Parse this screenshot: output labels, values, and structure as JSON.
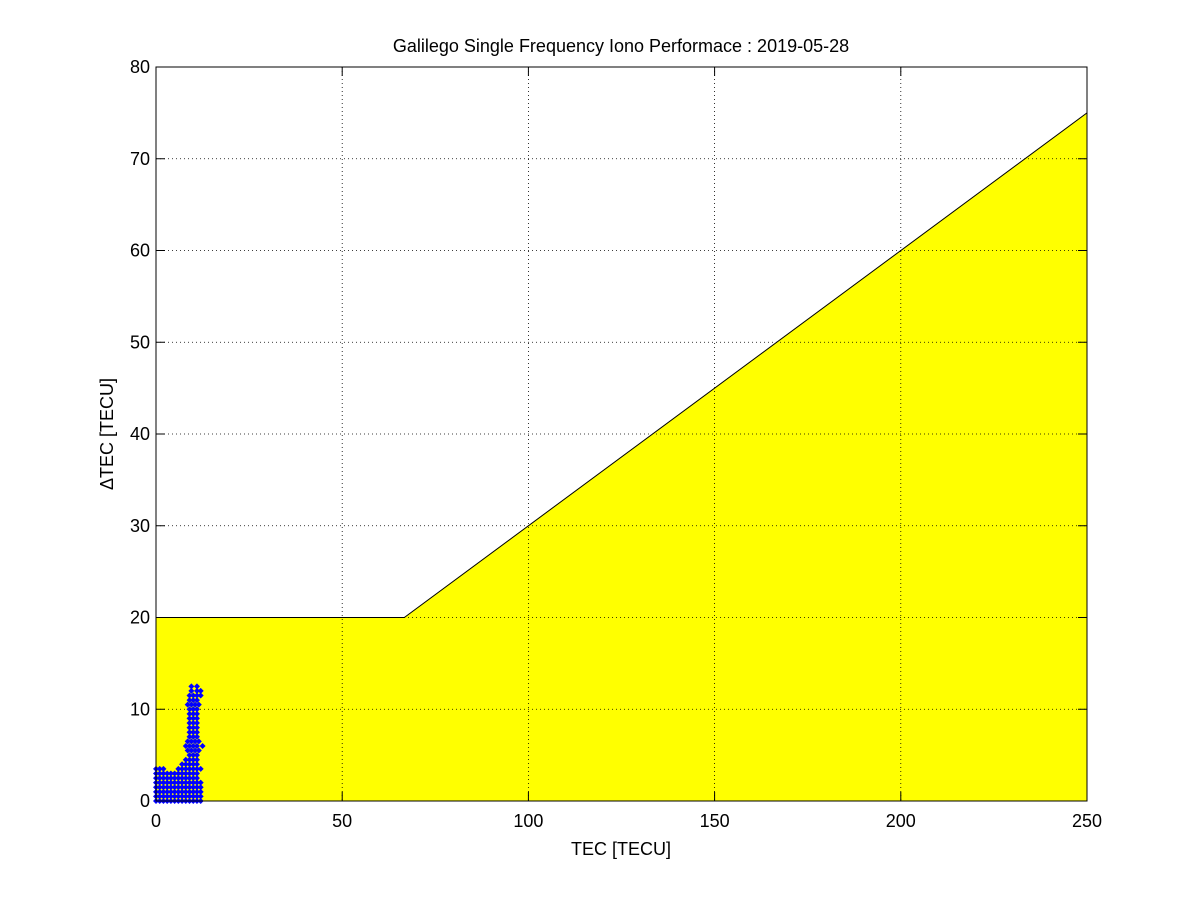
{
  "chart_data": {
    "type": "scatter",
    "title": "Galilego Single Frequency Iono Performace : 2019-05-28",
    "xlabel": "TEC [TECU]",
    "ylabel": "ΔTEC [TECU]",
    "xlim": [
      0,
      250
    ],
    "ylim": [
      0,
      80
    ],
    "xticks": [
      0,
      50,
      100,
      150,
      200,
      250
    ],
    "yticks": [
      0,
      10,
      20,
      30,
      40,
      50,
      60,
      70,
      80
    ],
    "grid": true,
    "legend": "none",
    "colors": {
      "region": "#ffff00",
      "points": "#0000ff",
      "region_edge": "#000000"
    },
    "region": {
      "description_points": [
        [
          0,
          0
        ],
        [
          0,
          20
        ],
        [
          66.67,
          20
        ],
        [
          250,
          75
        ],
        [
          250,
          0
        ]
      ]
    },
    "points_by_row": [
      {
        "y": 0,
        "x": [
          0,
          1,
          2,
          3,
          4,
          5,
          6,
          7,
          8,
          9,
          10,
          11,
          12
        ]
      },
      {
        "y": 0.5,
        "x": [
          0,
          1,
          2,
          3,
          4,
          5,
          6,
          7,
          8,
          9,
          10,
          11,
          12
        ]
      },
      {
        "y": 1,
        "x": [
          0,
          1,
          2,
          3,
          4,
          5,
          6,
          7,
          8,
          9,
          10,
          11,
          12
        ]
      },
      {
        "y": 1.5,
        "x": [
          0,
          1,
          2,
          3,
          4,
          5,
          6,
          7,
          8,
          9,
          10,
          11,
          12
        ]
      },
      {
        "y": 2,
        "x": [
          0,
          1,
          2,
          3,
          4,
          5,
          6,
          7,
          8,
          9,
          10,
          11,
          12
        ]
      },
      {
        "y": 2.5,
        "x": [
          0,
          1,
          2,
          3,
          4,
          5,
          6,
          7,
          8,
          9,
          10,
          11
        ]
      },
      {
        "y": 3,
        "x": [
          0,
          1,
          2,
          3,
          4,
          5,
          6,
          7,
          8,
          9,
          10,
          11
        ]
      },
      {
        "y": 3.5,
        "x": [
          0,
          1,
          2,
          6,
          7,
          8,
          9,
          10,
          11,
          12
        ]
      },
      {
        "y": 4,
        "x": [
          7,
          8,
          9,
          10,
          11
        ]
      },
      {
        "y": 4.5,
        "x": [
          8,
          9,
          10,
          11
        ]
      },
      {
        "y": 5,
        "x": [
          9,
          10,
          11
        ]
      },
      {
        "y": 5.5,
        "x": [
          8.5,
          9.5,
          10.5,
          11.5
        ]
      },
      {
        "y": 6,
        "x": [
          8,
          9,
          10,
          11,
          12.5
        ]
      },
      {
        "y": 6.5,
        "x": [
          8.5,
          9.5,
          10.5,
          11.5
        ]
      },
      {
        "y": 7,
        "x": [
          9,
          10,
          11
        ]
      },
      {
        "y": 7.5,
        "x": [
          9,
          10,
          11
        ]
      },
      {
        "y": 8,
        "x": [
          9,
          10,
          11
        ]
      },
      {
        "y": 8.5,
        "x": [
          9,
          10,
          11
        ]
      },
      {
        "y": 9,
        "x": [
          9,
          10,
          11
        ]
      },
      {
        "y": 9.5,
        "x": [
          9,
          10,
          11
        ]
      },
      {
        "y": 10,
        "x": [
          9,
          10,
          11
        ]
      },
      {
        "y": 10.5,
        "x": [
          8.5,
          9.5,
          10.5,
          11.5
        ]
      },
      {
        "y": 11,
        "x": [
          9,
          10,
          11
        ]
      },
      {
        "y": 11.5,
        "x": [
          9,
          10,
          11,
          12
        ]
      },
      {
        "y": 12,
        "x": [
          9.5,
          11,
          12
        ]
      },
      {
        "y": 12.5,
        "x": [
          9.5,
          11
        ]
      }
    ]
  }
}
